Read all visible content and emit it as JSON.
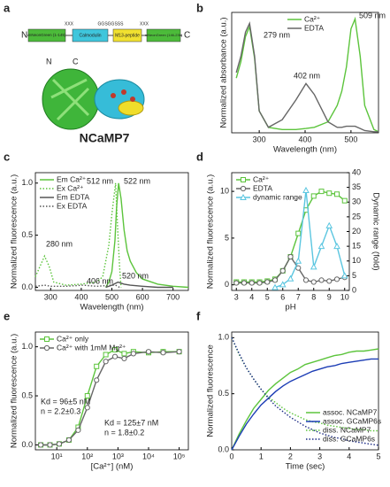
{
  "diagram": {
    "panel": "a",
    "n_label": "N",
    "c_label": "C",
    "linker1": "XXX",
    "linker2": "GGSGGSSS",
    "linker3": "XXX",
    "domains": [
      "mNeonGreen (1-145)",
      "Calmodulin",
      "M13-peptide",
      "mNeonGreen (146-236)"
    ],
    "structure_n": "N",
    "structure_c": "C",
    "name": "NCaMP7"
  },
  "chart_data": [
    {
      "type": "line",
      "panel": "b",
      "xlabel": "Wavelength (nm)",
      "ylabel": "Normalized absorbance (a.u.)",
      "x": [
        250,
        260,
        270,
        279,
        290,
        300,
        320,
        350,
        380,
        402,
        420,
        450,
        470,
        480,
        490,
        500,
        509,
        520,
        530,
        550,
        560
      ],
      "series": [
        {
          "name": "Ca²⁺",
          "color": "#5cc43c",
          "values": [
            0.5,
            0.65,
            0.88,
            0.97,
            0.68,
            0.2,
            0.05,
            0.03,
            0.03,
            0.04,
            0.05,
            0.1,
            0.25,
            0.38,
            0.6,
            0.95,
            1.04,
            0.7,
            0.25,
            0.03,
            0.01
          ]
        },
        {
          "name": "EDTA",
          "color": "#666666",
          "values": [
            0.55,
            0.7,
            0.92,
            1.0,
            0.7,
            0.2,
            0.05,
            0.12,
            0.3,
            0.45,
            0.35,
            0.1,
            0.05,
            0.05,
            0.06,
            0.06,
            0.06,
            0.04,
            0.02,
            0.01,
            0.01
          ]
        }
      ],
      "annotations": [
        {
          "text": "279 nm"
        },
        {
          "text": "402 nm"
        },
        {
          "text": "509 nm"
        }
      ],
      "xlim": [
        240,
        560
      ],
      "xticks": [
        300,
        400,
        500
      ],
      "ylim": [
        0,
        1.1
      ],
      "legend": "upper center"
    },
    {
      "type": "line",
      "panel": "c",
      "xlabel": "Wavelength (nm)",
      "ylabel": "Normalized fluorescence (a.u.)",
      "series": [
        {
          "name": "Em Ca²⁺",
          "color": "#5cc43c",
          "x": [
            480,
            490,
            500,
            510,
            515,
            522,
            530,
            540,
            550,
            560,
            580,
            600,
            650,
            700,
            750
          ],
          "values": [
            0.0,
            0.05,
            0.15,
            0.45,
            0.75,
            1.0,
            0.85,
            0.55,
            0.35,
            0.25,
            0.14,
            0.08,
            0.03,
            0.01,
            0.0
          ]
        },
        {
          "name": "Ex Ca²⁺",
          "color": "#5cc43c",
          "dash": "dotted",
          "x": [
            250,
            265,
            280,
            295,
            310,
            350,
            400,
            450,
            470,
            490,
            500,
            512,
            520,
            525,
            530
          ],
          "values": [
            0.1,
            0.2,
            0.3,
            0.2,
            0.05,
            0.02,
            0.03,
            0.05,
            0.1,
            0.4,
            0.7,
            1.0,
            0.5,
            0.2,
            0.0
          ]
        },
        {
          "name": "Em EDTA",
          "color": "#555555",
          "x": [
            480,
            500,
            520,
            540,
            560,
            600,
            650,
            700
          ],
          "values": [
            0.0,
            0.02,
            0.05,
            0.03,
            0.02,
            0.01,
            0.0,
            0.0
          ]
        },
        {
          "name": "Ex EDTA",
          "color": "#555555",
          "dash": "dotted",
          "x": [
            250,
            280,
            300,
            350,
            406,
            450,
            500,
            512,
            525
          ],
          "values": [
            0.01,
            0.02,
            0.01,
            0.01,
            0.02,
            0.01,
            0.02,
            0.02,
            0.0
          ]
        }
      ],
      "annotations": [
        {
          "text": "512 nm"
        },
        {
          "text": "522 nm"
        },
        {
          "text": "280 nm"
        },
        {
          "text": "406 nm"
        },
        {
          "text": "520 nm"
        }
      ],
      "xlim": [
        250,
        750
      ],
      "xticks": [
        300,
        400,
        500,
        600,
        700
      ],
      "ylim": [
        -0.03,
        1.1
      ],
      "yticks": [
        {
          "value": 0,
          "label": "0.0"
        },
        {
          "value": 0.5,
          "label": "0.5"
        },
        {
          "value": 1,
          "label": "1.0"
        }
      ],
      "legend": "upper left"
    },
    {
      "type": "line",
      "panel": "d",
      "xlabel": "pH",
      "ylabel": "Normalized fluorescence (a.u.)",
      "y2label": "Dynamic range (fold)",
      "x": [
        3,
        3.5,
        4,
        4.5,
        5,
        5.5,
        6,
        6.5,
        7,
        7.5,
        8,
        8.5,
        9,
        9.5,
        10
      ],
      "series": [
        {
          "name": "Ca²⁺",
          "color": "#5cc43c",
          "marker": "square",
          "values": [
            0.3,
            0.3,
            0.3,
            0.3,
            0.4,
            0.6,
            1.5,
            3,
            5.5,
            8,
            9.5,
            10,
            9.8,
            9.7,
            9
          ]
        },
        {
          "name": "EDTA",
          "color": "#666666",
          "marker": "circle",
          "values": [
            0.2,
            0.2,
            0.2,
            0.2,
            0.3,
            0.5,
            1.5,
            3,
            1.8,
            0.5,
            0.3,
            0.5,
            0.4,
            0.6,
            0.8
          ]
        },
        {
          "name": "dynamic range",
          "color": "#5bc6e0",
          "marker": "triangle",
          "axis": "y2",
          "values": [
            null,
            null,
            null,
            null,
            null,
            1,
            2,
            4,
            10,
            34,
            8,
            15,
            22,
            15,
            5
          ]
        }
      ],
      "xlim": [
        2.7,
        10.3
      ],
      "xticks": [
        3,
        4,
        5,
        6,
        7,
        8,
        9,
        10
      ],
      "ylim": [
        -0.6,
        12
      ],
      "yticks": [
        0,
        5,
        10
      ],
      "y2lim": [
        0,
        40
      ],
      "y2ticks": [
        0,
        5,
        10,
        15,
        20,
        25,
        30,
        35,
        40
      ],
      "legend": "upper left"
    },
    {
      "type": "line",
      "panel": "e",
      "xlabel": "[Ca²⁺] (nM)",
      "ylabel": "Normalized fluorescence (a.u.)",
      "xscale": "log",
      "x": [
        3,
        6,
        12,
        25,
        50,
        100,
        200,
        400,
        800,
        1600,
        3200,
        10000,
        30000,
        100000
      ],
      "series": [
        {
          "name": "Ca²⁺ only",
          "color": "#5cc43c",
          "marker": "square",
          "values": [
            0.0,
            0.0,
            0.01,
            0.05,
            0.18,
            0.5,
            0.8,
            0.92,
            0.97,
            0.93,
            0.95,
            0.94,
            0.95,
            0.95
          ]
        },
        {
          "name": "Ca²⁺ with 1mM Mg²⁺",
          "color": "#666666",
          "marker": "circle",
          "values": [
            0.0,
            0.0,
            0.01,
            0.05,
            0.15,
            0.38,
            0.66,
            0.85,
            0.9,
            0.88,
            0.93,
            0.95,
            0.94,
            0.95
          ]
        }
      ],
      "annotations": [
        {
          "text": "Kd = 96±5 nM",
          "color": "#3fae2a"
        },
        {
          "text": "n = 2.2±0.3",
          "color": "#3fae2a"
        },
        {
          "text": "Kd = 125±7 nM",
          "color": "#777777"
        },
        {
          "text": "n = 1.8±0.2",
          "color": "#777777"
        }
      ],
      "xlim": [
        2,
        200000
      ],
      "xticks": [
        {
          "value": 10,
          "label": "10¹"
        },
        {
          "value": 100,
          "label": "10²"
        },
        {
          "value": 1000,
          "label": "10³"
        },
        {
          "value": 10000,
          "label": "10⁴"
        },
        {
          "value": 100000,
          "label": "10⁵"
        }
      ],
      "ylim": [
        -0.05,
        1.15
      ],
      "yticks": [
        {
          "value": 0,
          "label": "0.0"
        },
        {
          "value": 0.5,
          "label": "0.5"
        },
        {
          "value": 1,
          "label": "1.0"
        }
      ],
      "legend": "upper left"
    },
    {
      "type": "line",
      "panel": "f",
      "xlabel": "Time (sec)",
      "ylabel": "Normalized fluorescence",
      "x": [
        0,
        0.25,
        0.5,
        0.75,
        1,
        1.25,
        1.5,
        1.75,
        2,
        2.25,
        2.5,
        2.75,
        3,
        3.25,
        3.5,
        3.75,
        4,
        4.25,
        4.5,
        4.75,
        5
      ],
      "series": [
        {
          "name": "assoc. NCaMP7",
          "color": "#5cc43c",
          "values": [
            0,
            0.14,
            0.26,
            0.37,
            0.45,
            0.53,
            0.59,
            0.64,
            0.69,
            0.72,
            0.76,
            0.78,
            0.8,
            0.82,
            0.84,
            0.85,
            0.87,
            0.88,
            0.88,
            0.89,
            0.9
          ]
        },
        {
          "name": "assoc. GCaMP6s",
          "color": "#1c3db5",
          "values": [
            0,
            0.12,
            0.23,
            0.32,
            0.4,
            0.46,
            0.52,
            0.57,
            0.61,
            0.64,
            0.67,
            0.7,
            0.72,
            0.74,
            0.75,
            0.77,
            0.78,
            0.79,
            0.8,
            0.81,
            0.81
          ]
        },
        {
          "name": "diss. NCaMP7",
          "color": "#5cc43c",
          "dash": "dotted",
          "values": [
            1.0,
            0.85,
            0.73,
            0.63,
            0.54,
            0.47,
            0.42,
            0.37,
            0.33,
            0.3,
            0.27,
            0.25,
            0.24,
            0.22,
            0.21,
            0.2,
            0.19,
            0.18,
            0.18,
            0.17,
            0.17
          ]
        },
        {
          "name": "diss. GCaMP6s",
          "color": "#1a2a85",
          "dash": "dotted",
          "values": [
            1.0,
            0.86,
            0.73,
            0.63,
            0.54,
            0.46,
            0.39,
            0.34,
            0.29,
            0.25,
            0.21,
            0.18,
            0.15,
            0.13,
            0.11,
            0.1,
            0.08,
            0.07,
            0.06,
            0.05,
            0.04
          ]
        }
      ],
      "xlim": [
        0,
        5
      ],
      "xticks": [
        0,
        1,
        2,
        3,
        4,
        5
      ],
      "ylim": [
        0,
        1.05
      ],
      "yticks": [
        {
          "value": 0,
          "label": "0.0"
        },
        {
          "value": 0.5,
          "label": "0.5"
        },
        {
          "value": 1,
          "label": "1.0"
        }
      ],
      "legend": "lower right"
    }
  ]
}
